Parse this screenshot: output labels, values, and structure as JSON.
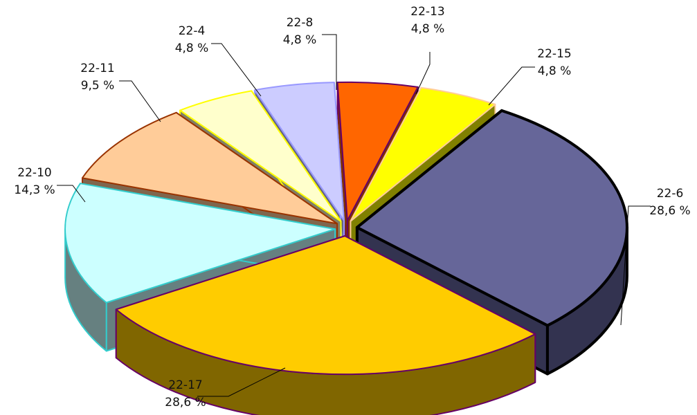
{
  "chart_data": {
    "type": "pie",
    "title": "",
    "three_d": true,
    "exploded": true,
    "slices": [
      {
        "label": "22-6",
        "value": 28.6,
        "value_label": "28,6 %",
        "top_color": "#666699",
        "side_color": "#333350",
        "stroke": "#000000"
      },
      {
        "label": "22-17",
        "value": 28.6,
        "value_label": "28,6 %",
        "top_color": "#FFCC00",
        "side_color": "#806600",
        "stroke": "#660066"
      },
      {
        "label": "22-10",
        "value": 14.3,
        "value_label": "14,3 %",
        "top_color": "#CCFFFF",
        "side_color": "#668080",
        "stroke": "#33CCCC"
      },
      {
        "label": "22-11",
        "value": 9.5,
        "value_label": "9,5 %",
        "top_color": "#FFCC99",
        "side_color": "#80664D",
        "stroke": "#993300"
      },
      {
        "label": "22-4",
        "value": 4.8,
        "value_label": "4,8 %",
        "top_color": "#FFFFCC",
        "side_color": "#808066",
        "stroke": "#FFFF00"
      },
      {
        "label": "22-8",
        "value": 4.8,
        "value_label": "4,8 %",
        "top_color": "#CCCCFF",
        "side_color": "#666680",
        "stroke": "#9999FF"
      },
      {
        "label": "22-13",
        "value": 4.8,
        "value_label": "4,8 %",
        "top_color": "#FF6600",
        "side_color": "#803300",
        "stroke": "#660066"
      },
      {
        "label": "22-15",
        "value": 4.8,
        "value_label": "4,8 %",
        "top_color": "#FFFF00",
        "side_color": "#808000",
        "stroke": "#FFCC99"
      }
    ]
  }
}
